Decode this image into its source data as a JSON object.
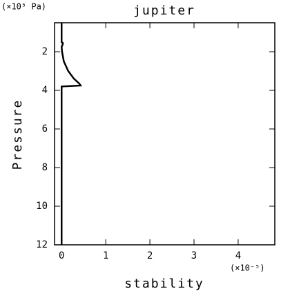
{
  "chart_data": {
    "type": "line",
    "title": "jupiter",
    "x_label": "stability",
    "y_label": "Pressure",
    "y_unit": "(×10⁵ Pa)",
    "x_unit": "(×10⁻⁵)",
    "xlim": [
      -0.16,
      4.83
    ],
    "xticks": [
      0,
      1,
      2,
      3,
      4
    ],
    "ylim": [
      0.5,
      12
    ],
    "yticks": [
      2,
      4,
      6,
      8,
      10,
      12
    ],
    "y_inverted": true,
    "series": [
      {
        "color": "#000000",
        "y": [
          0.5,
          1.5,
          1.55,
          1.65,
          1.75,
          2.0,
          2.5,
          3.0,
          3.4,
          3.65,
          3.75,
          3.8,
          12
        ],
        "x": [
          0,
          0,
          0.03,
          0.02,
          0,
          0.01,
          0.05,
          0.15,
          0.28,
          0.4,
          0.43,
          0,
          0
        ]
      }
    ]
  }
}
